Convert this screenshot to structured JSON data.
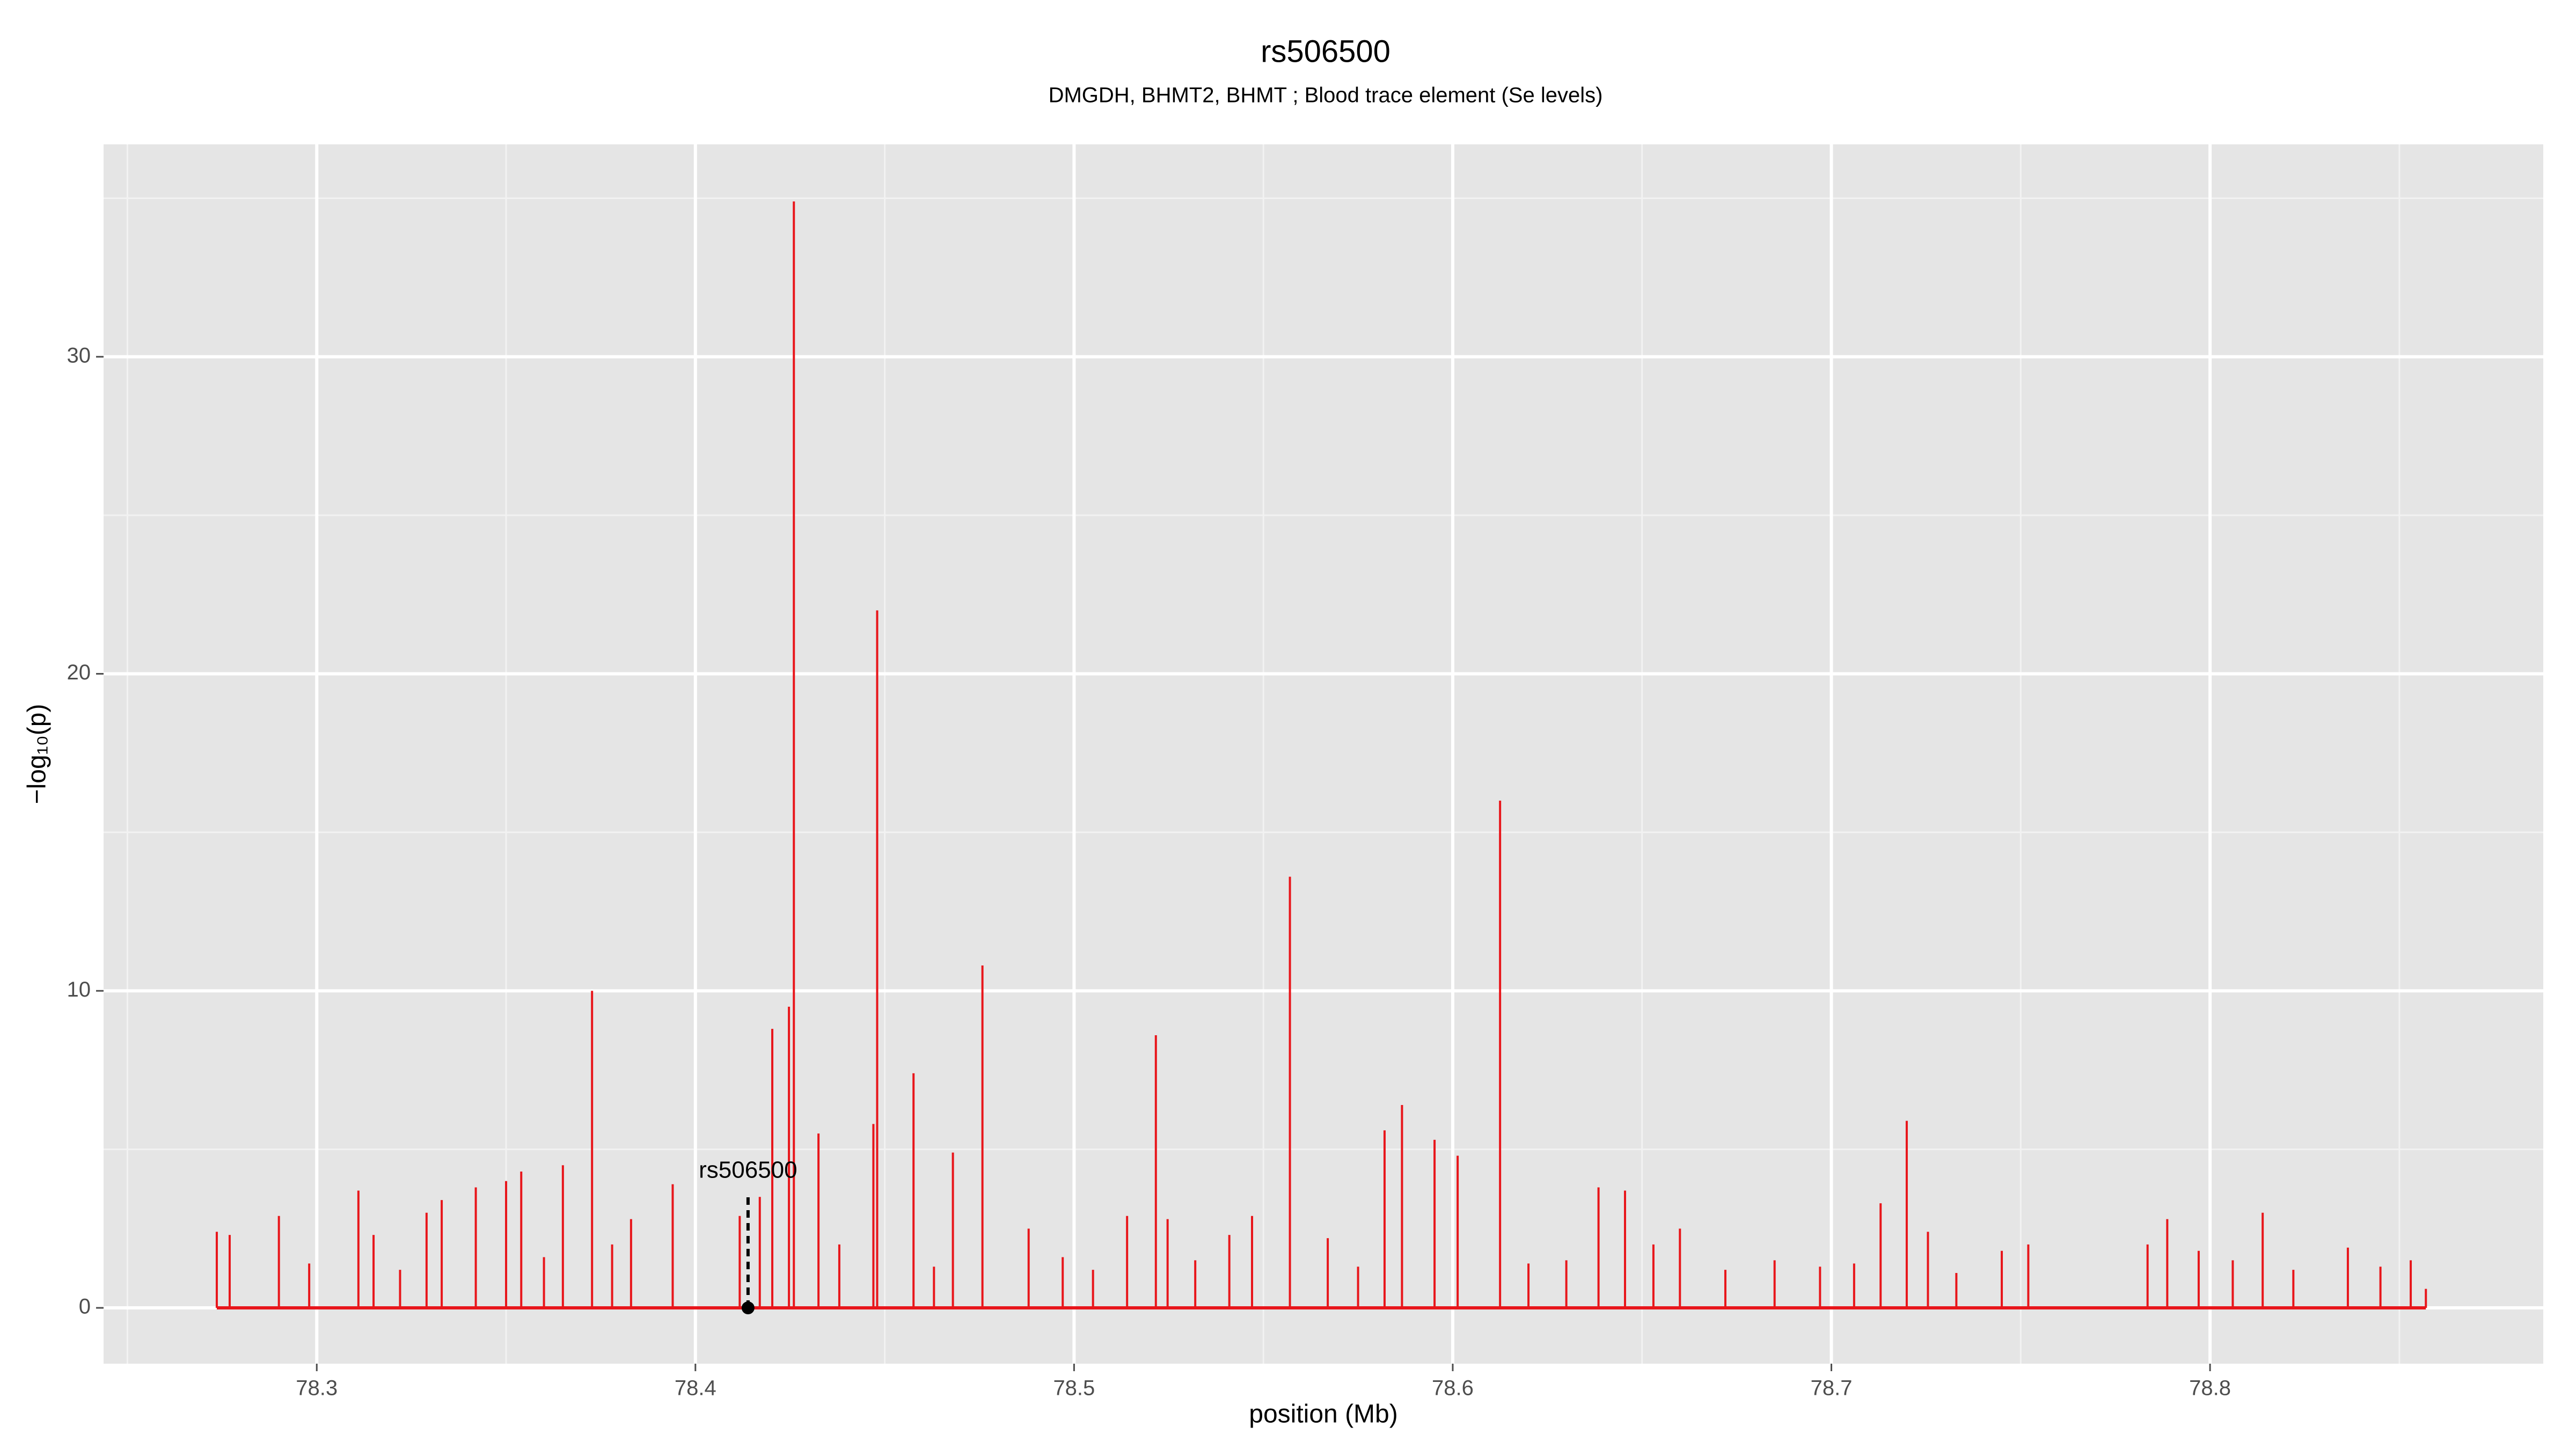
{
  "chart_data": {
    "type": "spike",
    "title": "rs506500",
    "subtitle": "DMGDH, BHMT2, BHMT ; Blood trace element (Se levels)",
    "x_label": "position (Mb)",
    "y_label": "−log₁₀(p)",
    "xlim": [
      78.2437,
      78.888
    ],
    "ylim": [
      -1.76,
      36.7
    ],
    "xticks": [
      78.3,
      78.4,
      78.5,
      78.6,
      78.7,
      78.8
    ],
    "yticks": [
      0,
      10,
      20,
      30
    ],
    "x_minor_ticks": [
      78.25,
      78.35,
      78.45,
      78.55,
      78.65,
      78.75,
      78.85
    ],
    "y_minor_ticks": [
      5,
      15,
      25,
      35
    ],
    "grid": true,
    "series": [
      {
        "color": "#e8161b",
        "x": [
          78.2736,
          78.277,
          78.29,
          78.298,
          78.311,
          78.315,
          78.322,
          78.329,
          78.333,
          78.342,
          78.35,
          78.354,
          78.36,
          78.365,
          78.3727,
          78.378,
          78.383,
          78.394,
          78.4117,
          78.417,
          78.4203,
          78.4247,
          78.426,
          78.4325,
          78.438,
          78.447,
          78.448,
          78.4576,
          78.463,
          78.468,
          78.4758,
          78.488,
          78.497,
          78.505,
          78.514,
          78.5216,
          78.5247,
          78.532,
          78.541,
          78.547,
          78.557,
          78.567,
          78.575,
          78.582,
          78.5866,
          78.5952,
          78.6013,
          78.6125,
          78.62,
          78.63,
          78.6385,
          78.6455,
          78.653,
          78.66,
          78.672,
          78.685,
          78.697,
          78.706,
          78.713,
          78.7199,
          78.7255,
          78.733,
          78.745,
          78.752,
          78.7835,
          78.7887,
          78.797,
          78.806,
          78.8139,
          78.822,
          78.8364,
          78.845,
          78.853,
          78.857
        ],
        "values": [
          2.4,
          2.3,
          2.9,
          1.4,
          3.7,
          2.3,
          1.2,
          3.0,
          3.4,
          3.8,
          4.0,
          4.3,
          1.6,
          4.5,
          10.0,
          2.0,
          2.8,
          3.9,
          2.9,
          3.5,
          8.8,
          9.5,
          34.9,
          5.5,
          2.0,
          5.8,
          22.0,
          7.4,
          1.3,
          4.9,
          10.8,
          2.5,
          1.6,
          1.2,
          2.9,
          8.6,
          2.8,
          1.5,
          2.3,
          2.9,
          13.6,
          2.2,
          1.3,
          5.6,
          6.4,
          5.3,
          4.8,
          16.0,
          1.4,
          1.5,
          3.8,
          3.7,
          2.0,
          2.5,
          1.2,
          1.5,
          1.3,
          1.4,
          3.3,
          5.9,
          2.4,
          1.1,
          1.8,
          2.0,
          2.0,
          2.8,
          1.8,
          1.5,
          3.0,
          1.2,
          1.9,
          1.3,
          1.5,
          0.6
        ]
      }
    ],
    "annotation": {
      "text": "rs506500",
      "x": 78.4139,
      "y": 0,
      "line_top": 3.5,
      "text_y": 4.3,
      "color": "#000000"
    }
  }
}
